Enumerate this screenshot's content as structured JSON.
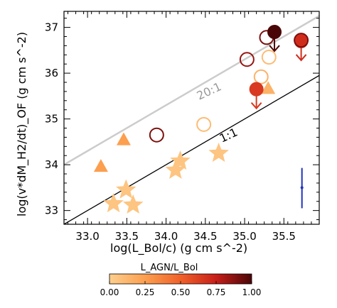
{
  "chart_data": {
    "type": "scatter",
    "xlabel": "log(L_Bol/c) (g cm s^-2)",
    "ylabel": "log(v*dM_H2/dt)_OF (g cm s^-2)",
    "xlim": [
      32.7,
      35.95
    ],
    "ylim": [
      32.7,
      37.35
    ],
    "xticks": [
      "33.0",
      "33.5",
      "34.0",
      "34.5",
      "35.0",
      "35.5"
    ],
    "yticks": [
      "33",
      "34",
      "35",
      "36",
      "37"
    ],
    "lines": [
      {
        "label": "20:1",
        "color": "#cccccc",
        "offset": 1.301
      },
      {
        "label": "1:1",
        "color": "#000000",
        "offset": 0.0
      }
    ],
    "colorbar": {
      "title": "L_AGN/L_Bol",
      "ticks": [
        "0.00",
        "0.25",
        "0.50",
        "0.75",
        "1.00"
      ],
      "range": [
        0,
        1
      ]
    },
    "error_bar": {
      "x": 35.73,
      "y": 33.5,
      "ylo": 33.05,
      "yhi": 33.93,
      "color": "#2233bb"
    },
    "points": [
      {
        "x": 33.33,
        "y": 33.15,
        "marker": "star",
        "fill": true,
        "c": 0.05
      },
      {
        "x": 33.49,
        "y": 33.45,
        "marker": "star",
        "fill": true,
        "c": 0.05
      },
      {
        "x": 33.58,
        "y": 33.12,
        "marker": "star",
        "fill": true,
        "c": 0.05
      },
      {
        "x": 34.12,
        "y": 33.88,
        "marker": "star",
        "fill": true,
        "c": 0.05
      },
      {
        "x": 34.18,
        "y": 34.08,
        "marker": "star",
        "fill": true,
        "c": 0.05
      },
      {
        "x": 34.67,
        "y": 34.25,
        "marker": "star",
        "fill": true,
        "c": 0.05
      },
      {
        "x": 33.17,
        "y": 33.97,
        "marker": "triangle",
        "fill": true,
        "c": 0.25
      },
      {
        "x": 33.46,
        "y": 34.55,
        "marker": "triangle",
        "fill": true,
        "c": 0.25
      },
      {
        "x": 35.3,
        "y": 35.67,
        "marker": "triangle",
        "fill": true,
        "c": 0.15
      },
      {
        "x": 33.88,
        "y": 34.65,
        "marker": "circle",
        "fill": false,
        "c": 0.9
      },
      {
        "x": 34.48,
        "y": 34.88,
        "marker": "circle",
        "fill": false,
        "c": 0.1
      },
      {
        "x": 35.03,
        "y": 36.3,
        "marker": "circle",
        "fill": false,
        "c": 0.85
      },
      {
        "x": 35.21,
        "y": 35.92,
        "marker": "circle",
        "fill": false,
        "c": 0.15
      },
      {
        "x": 35.28,
        "y": 36.78,
        "marker": "circle",
        "fill": false,
        "c": 0.9
      },
      {
        "x": 35.31,
        "y": 36.35,
        "marker": "circle",
        "fill": false,
        "c": 0.1
      },
      {
        "x": 35.15,
        "y": 35.65,
        "marker": "circle",
        "fill": true,
        "c": 0.65,
        "upper_limit": true
      },
      {
        "x": 35.38,
        "y": 36.9,
        "marker": "circle",
        "fill": true,
        "c": 1.0,
        "upper_limit": true
      },
      {
        "x": 35.72,
        "y": 36.7,
        "marker": "circle",
        "fill": true,
        "c": 0.7,
        "upper_limit": true
      },
      {
        "x": 35.72,
        "y": 36.72,
        "marker": "circle",
        "fill": false,
        "c": 0.9
      }
    ]
  }
}
